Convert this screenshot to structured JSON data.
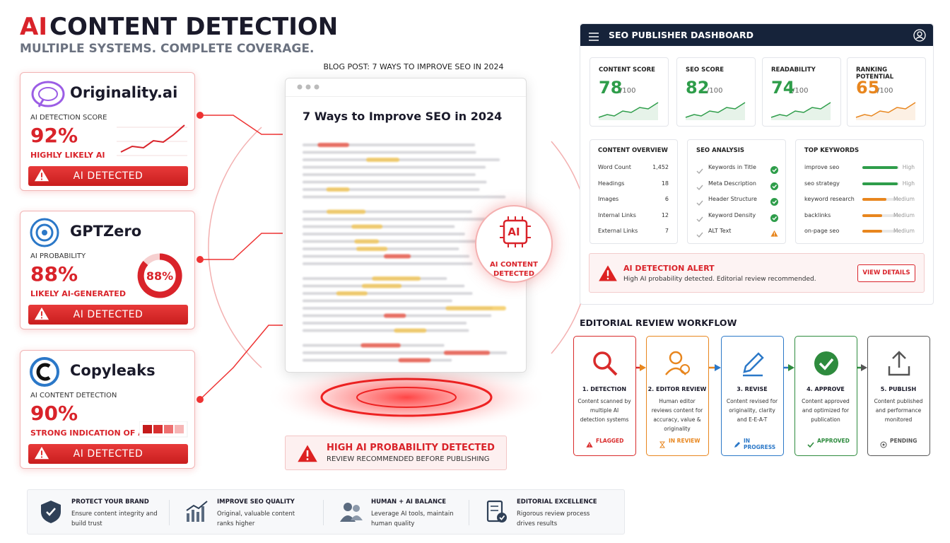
{
  "header": {
    "accent": "AI",
    "title": "CONTENT DETECTION",
    "subtitle": "MULTIPLE SYSTEMS. COMPLETE COVERAGE."
  },
  "detectors": [
    {
      "name": "Originality.ai",
      "metric": "AI DETECTION SCORE",
      "value": "92%",
      "verdict": "HIGHLY LIKELY AI",
      "badge": "AI DETECTED"
    },
    {
      "name": "GPTZero",
      "metric": "AI PROBABILITY",
      "value": "88%",
      "verdict": "LIKELY AI-GENERATED",
      "badge": "AI DETECTED"
    },
    {
      "name": "Copyleaks",
      "metric": "AI CONTENT DETECTION",
      "value": "90%",
      "verdict": "STRONG INDICATION OF AI",
      "badge": "AI DETECTED"
    }
  ],
  "blog": {
    "caption": "BLOG POST: 7 WAYS TO IMPROVE SEO IN 2024",
    "title": "7 Ways to Improve SEO in 2024",
    "chip": "AI",
    "chip_label": "AI CONTENT DETECTED",
    "alert_title": "HIGH AI PROBABILITY DETECTED",
    "alert_text": "REVIEW RECOMMENDED BEFORE PUBLISHING"
  },
  "dashboard": {
    "title": "SEO PUBLISHER DASHBOARD",
    "scores": [
      {
        "label": "CONTENT SCORE",
        "value": "78",
        "unit": "/100",
        "color": "#2e9d4a"
      },
      {
        "label": "SEO SCORE",
        "value": "82",
        "unit": "/100",
        "color": "#2e9d4a"
      },
      {
        "label": "READABILITY",
        "value": "74",
        "unit": "/100",
        "color": "#2e9d4a"
      },
      {
        "label": "RANKING POTENTIAL",
        "value": "65",
        "unit": "/100",
        "color": "#e8861e"
      }
    ],
    "overview": {
      "title": "CONTENT OVERVIEW",
      "rows": [
        {
          "label": "Word Count",
          "value": "1,452"
        },
        {
          "label": "Headings",
          "value": "18"
        },
        {
          "label": "Images",
          "value": "6"
        },
        {
          "label": "Internal Links",
          "value": "12"
        },
        {
          "label": "External Links",
          "value": "7"
        }
      ]
    },
    "analysis": {
      "title": "SEO ANALYSIS",
      "items": [
        {
          "label": "Keywords in Title",
          "color": "#2e9d4a"
        },
        {
          "label": "Meta Description",
          "color": "#2e9d4a"
        },
        {
          "label": "Header Structure",
          "color": "#2e9d4a"
        },
        {
          "label": "Keyword Density",
          "color": "#2e9d4a"
        },
        {
          "label": "ALT Text",
          "color": "#e8861e"
        }
      ]
    },
    "keywords": {
      "title": "TOP KEYWORDS",
      "items": [
        {
          "name": "improve seo",
          "level": "High",
          "color": "#2e9d4a"
        },
        {
          "name": "seo strategy",
          "level": "High",
          "color": "#2e9d4a"
        },
        {
          "name": "keyword research",
          "level": "Medium",
          "color": "#e8861e"
        },
        {
          "name": "backlinks",
          "level": "Medium",
          "color": "#e8861e"
        },
        {
          "name": "on-page seo",
          "level": "Medium",
          "color": "#e8861e"
        }
      ]
    },
    "alert": {
      "title": "AI DETECTION ALERT",
      "text": "High AI probability detected. Editorial review recommended.",
      "button": "VIEW DETAILS"
    }
  },
  "workflow": {
    "title": "EDITORIAL REVIEW WORKFLOW",
    "steps": [
      {
        "title": "1. DETECTION",
        "text": "Content scanned by multiple AI detection systems",
        "status": "FLAGGED",
        "color": "#d92b2b"
      },
      {
        "title": "2. EDITOR REVIEW",
        "text": "Human editor reviews content for accuracy, value & originality",
        "status": "IN REVIEW",
        "color": "#e8861e"
      },
      {
        "title": "3. REVISE",
        "text": "Content revised for originality, clarity and E-E-A-T",
        "status": "IN PROGRESS",
        "color": "#2b78c8"
      },
      {
        "title": "4. APPROVE",
        "text": "Content approved and optimized for publication",
        "status": "APPROVED",
        "color": "#2e8b3e"
      },
      {
        "title": "5. PUBLISH",
        "text": "Content published and performance monitored",
        "status": "PENDING",
        "color": "#555555"
      }
    ]
  },
  "footer": [
    {
      "title": "PROTECT YOUR BRAND",
      "text": "Ensure content integrity and build trust"
    },
    {
      "title": "IMPROVE SEO QUALITY",
      "text": "Original, valuable content ranks higher"
    },
    {
      "title": "HUMAN + AI BALANCE",
      "text": "Leverage AI tools, maintain human quality"
    },
    {
      "title": "EDITORIAL EXCELLENCE",
      "text": "Rigorous review process drives results"
    }
  ]
}
